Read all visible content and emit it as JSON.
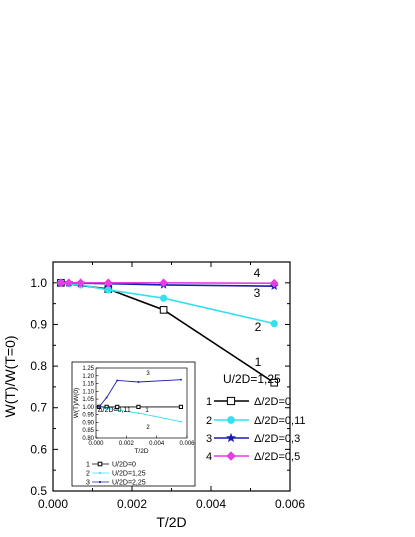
{
  "chart_data": [
    {
      "type": "line",
      "xlabel": "T/2D",
      "ylabel": "W(T)/W(T=0)",
      "xlim": [
        0.0,
        0.006
      ],
      "ylim": [
        0.5,
        1.05
      ],
      "xticks": [
        "0.000",
        "0.002",
        "0.004",
        "0.006"
      ],
      "yticks": [
        "0.5",
        "0.6",
        "0.7",
        "0.8",
        "0.9",
        "1.0"
      ],
      "legend_title": "U/2D=1,25",
      "legend_placement": "right",
      "series": [
        {
          "id": "1",
          "name": "Δ/2D=0",
          "marker": "open-square",
          "color": "#000000",
          "x": [
            0.0002,
            0.0014,
            0.0028,
            0.0056
          ],
          "y": [
            1.0,
            0.985,
            0.935,
            0.76
          ]
        },
        {
          "id": "2",
          "name": "Δ/2D=0,11",
          "marker": "circle",
          "color": "#33e0ee",
          "x": [
            0.0002,
            0.0004,
            0.0007,
            0.0014,
            0.0028,
            0.0056
          ],
          "y": [
            1.0,
            0.998,
            0.995,
            0.983,
            0.963,
            0.902
          ]
        },
        {
          "id": "3",
          "name": "Δ/2D=0,3",
          "marker": "star",
          "color": "#1b1bb0",
          "x": [
            0.0002,
            0.0004,
            0.0007,
            0.0014,
            0.0028,
            0.0056
          ],
          "y": [
            1.0,
            1.0,
            0.999,
            0.998,
            0.995,
            0.992
          ]
        },
        {
          "id": "4",
          "name": "Δ/2D=0,5",
          "marker": "diamond",
          "color": "#e43ee4",
          "x": [
            0.0002,
            0.0004,
            0.0007,
            0.0014,
            0.0028,
            0.0056
          ],
          "y": [
            1.0,
            1.0,
            1.0,
            1.0,
            1.0,
            0.999
          ]
        }
      ]
    },
    {
      "type": "line",
      "xlabel": "T/2D",
      "ylabel": "W(T)/W(0)",
      "xlim": [
        0.0,
        0.006
      ],
      "ylim": [
        0.8,
        1.25
      ],
      "xticks": [
        "0.000",
        "0.002",
        "0.004",
        "0.006"
      ],
      "yticks": [
        "0.80",
        "0.85",
        "0.90",
        "0.95",
        "1.00",
        "1.05",
        "1.10",
        "1.15",
        "1.20",
        "1.25"
      ],
      "annotation": "Δ/2D=0,11",
      "series": [
        {
          "id": "1",
          "name": "U/2D=0",
          "marker": "open-square",
          "color": "#000000",
          "x": [
            0.0002,
            0.0007,
            0.0014,
            0.0028,
            0.0056
          ],
          "y": [
            1.0,
            1.0,
            1.0,
            1.0,
            1.0
          ]
        },
        {
          "id": "2",
          "name": "U/2D=1,25",
          "marker": "dot",
          "color": "#33e0ee",
          "x": [
            0.0002,
            0.0007,
            0.0014,
            0.0028,
            0.0056
          ],
          "y": [
            1.0,
            0.99,
            0.98,
            0.96,
            0.905
          ]
        },
        {
          "id": "3",
          "name": "U/2D=2,25",
          "marker": "dot",
          "color": "#1b1bb0",
          "x": [
            0.0002,
            0.0007,
            0.0014,
            0.0028,
            0.0056
          ],
          "y": [
            1.0,
            1.06,
            1.17,
            1.16,
            1.175
          ]
        }
      ]
    }
  ]
}
